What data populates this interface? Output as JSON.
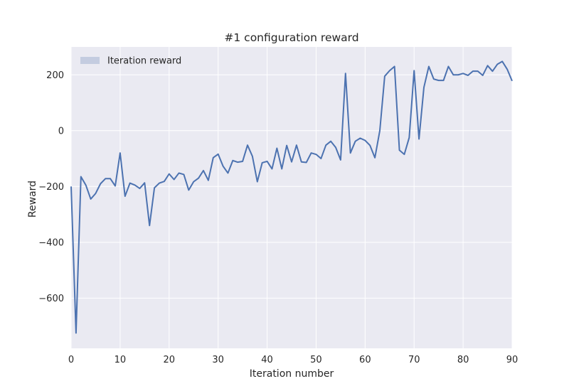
{
  "chart_data": {
    "type": "line",
    "title": "#1 configuration reward",
    "xlabel": "Iteration number",
    "ylabel": "Reward",
    "xlim": [
      0,
      90
    ],
    "ylim": [
      -780,
      300
    ],
    "xticks": [
      0,
      10,
      20,
      30,
      40,
      50,
      60,
      70,
      80,
      90
    ],
    "yticks": [
      -600,
      -400,
      -200,
      0,
      200
    ],
    "ytick_labels": [
      "−600",
      "−400",
      "−200",
      "0",
      "200"
    ],
    "grid": true,
    "legend": {
      "placement": "top-left",
      "entries": [
        "Iteration reward"
      ]
    },
    "series": [
      {
        "name": "Iteration reward",
        "color": "#4c72b0",
        "x": [
          0,
          1,
          2,
          3,
          4,
          5,
          6,
          7,
          8,
          9,
          10,
          11,
          12,
          13,
          14,
          15,
          16,
          17,
          18,
          19,
          20,
          21,
          22,
          23,
          24,
          25,
          26,
          27,
          28,
          29,
          30,
          31,
          32,
          33,
          34,
          35,
          36,
          37,
          38,
          39,
          40,
          41,
          42,
          43,
          44,
          45,
          46,
          47,
          48,
          49,
          50,
          51,
          52,
          53,
          54,
          55,
          56,
          57,
          58,
          59,
          60,
          61,
          62,
          63,
          64,
          65,
          66,
          67,
          68,
          69,
          70,
          71,
          72,
          73,
          74,
          75,
          76,
          77,
          78,
          79,
          80,
          81,
          82,
          83,
          84,
          85,
          86,
          87,
          88,
          89,
          90
        ],
        "y": [
          -200,
          -725,
          -165,
          -195,
          -245,
          -225,
          -190,
          -172,
          -172,
          -198,
          -80,
          -235,
          -188,
          -195,
          -207,
          -187,
          -340,
          -205,
          -188,
          -182,
          -155,
          -175,
          -152,
          -157,
          -213,
          -183,
          -170,
          -143,
          -178,
          -97,
          -84,
          -127,
          -152,
          -107,
          -113,
          -110,
          -52,
          -92,
          -183,
          -115,
          -110,
          -137,
          -63,
          -137,
          -53,
          -112,
          -52,
          -112,
          -114,
          -80,
          -85,
          -100,
          -52,
          -38,
          -60,
          -105,
          205,
          -80,
          -38,
          -27,
          -35,
          -53,
          -97,
          0,
          195,
          215,
          230,
          -70,
          -85,
          -25,
          215,
          -30,
          155,
          230,
          185,
          180,
          180,
          230,
          200,
          200,
          205,
          198,
          213,
          213,
          198,
          233,
          213,
          238,
          248,
          220,
          178
        ]
      }
    ]
  }
}
